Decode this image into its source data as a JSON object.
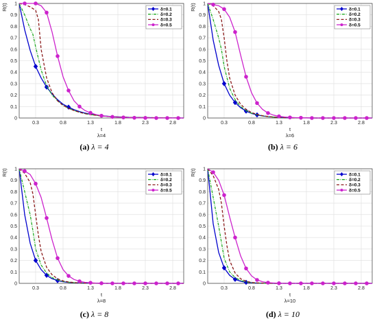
{
  "chart_data": [
    {
      "type": "line",
      "caption_tag": "(a)",
      "caption_expr": "λ = 4",
      "ylabel": "R(t)",
      "xlabel": "t",
      "xlabel_sub": "λ=4",
      "xlim": [
        0,
        3.0
      ],
      "ylim": [
        0,
        1
      ],
      "xticks": [
        0.3,
        0.8,
        1.3,
        1.8,
        2.3,
        2.8
      ],
      "yticks": [
        0,
        0.1,
        0.2,
        0.3,
        0.4,
        0.5,
        0.6,
        0.7,
        0.8,
        0.9,
        1
      ],
      "grid": true,
      "legend_position": "top-right",
      "series": [
        {
          "name": "δ=0.1",
          "color": "#0000cc",
          "style": "solid",
          "marker": "diamond",
          "x": [
            0,
            0.1,
            0.2,
            0.3,
            0.4,
            0.5,
            0.6,
            0.7,
            0.8,
            0.9,
            1.0,
            1.1,
            1.2,
            1.3,
            1.5,
            1.7,
            2.0,
            2.5,
            3.0
          ],
          "y": [
            1.0,
            0.77,
            0.59,
            0.45,
            0.35,
            0.27,
            0.21,
            0.16,
            0.12,
            0.095,
            0.073,
            0.056,
            0.043,
            0.033,
            0.02,
            0.012,
            0.006,
            0.002,
            0.0
          ],
          "marker_x": [
            0.3,
            0.5,
            0.9
          ]
        },
        {
          "name": "δ=0.2",
          "color": "#22aa22",
          "style": "dashdot",
          "marker": "none",
          "x": [
            0,
            0.1,
            0.2,
            0.25,
            0.3,
            0.4,
            0.5,
            0.6,
            0.7,
            0.8,
            0.9,
            1.0,
            1.1,
            1.2,
            1.3,
            1.5,
            1.7,
            2.0,
            2.5,
            3.0
          ],
          "y": [
            1.0,
            0.9,
            0.78,
            0.73,
            0.62,
            0.42,
            0.28,
            0.2,
            0.15,
            0.11,
            0.085,
            0.065,
            0.05,
            0.038,
            0.03,
            0.018,
            0.011,
            0.005,
            0.002,
            0.0
          ]
        },
        {
          "name": "δ=0.3",
          "color": "#8b1a1a",
          "style": "dash",
          "marker": "none",
          "x": [
            0,
            0.1,
            0.2,
            0.3,
            0.35,
            0.4,
            0.5,
            0.6,
            0.7,
            0.8,
            0.9,
            1.0,
            1.1,
            1.2,
            1.3,
            1.5,
            1.7,
            2.0,
            2.5,
            3.0
          ],
          "y": [
            1.0,
            0.99,
            0.97,
            0.94,
            0.86,
            0.6,
            0.35,
            0.22,
            0.15,
            0.11,
            0.085,
            0.065,
            0.05,
            0.038,
            0.03,
            0.018,
            0.011,
            0.005,
            0.002,
            0.0
          ]
        },
        {
          "name": "δ=0.5",
          "color": "#cc22cc",
          "style": "solid",
          "marker": "circle",
          "x": [
            0,
            0.1,
            0.2,
            0.3,
            0.4,
            0.5,
            0.6,
            0.7,
            0.8,
            0.9,
            1.0,
            1.1,
            1.2,
            1.3,
            1.4,
            1.5,
            1.6,
            1.7,
            1.8,
            1.9,
            2.0,
            2.1,
            2.2,
            2.3,
            2.4,
            2.5,
            2.6,
            2.7,
            2.8,
            2.9,
            3.0
          ],
          "y": [
            1.0,
            1.0,
            1.0,
            1.0,
            0.98,
            0.92,
            0.75,
            0.54,
            0.36,
            0.24,
            0.15,
            0.1,
            0.065,
            0.045,
            0.03,
            0.02,
            0.014,
            0.01,
            0.007,
            0.005,
            0.003,
            0.002,
            0.001,
            0.001,
            0.0,
            0.0,
            0.0,
            0.0,
            0.0,
            0.0,
            0.0
          ],
          "marker_x": [
            0.1,
            0.3,
            0.5,
            0.7,
            0.9,
            1.1,
            1.3,
            1.5,
            1.7,
            1.9,
            2.1,
            2.3,
            2.5,
            2.7,
            2.9
          ]
        }
      ]
    },
    {
      "type": "line",
      "caption_tag": "(b)",
      "caption_expr": "λ = 6",
      "ylabel": "R(t)",
      "xlabel": "t",
      "xlabel_sub": "λ=6",
      "xlim": [
        0,
        3.0
      ],
      "ylim": [
        0,
        1
      ],
      "xticks": [
        0.3,
        0.8,
        1.3,
        1.8,
        2.3,
        2.8
      ],
      "yticks": [
        0,
        0.1,
        0.2,
        0.3,
        0.4,
        0.5,
        0.6,
        0.7,
        0.8,
        0.9,
        1
      ],
      "grid": true,
      "legend_position": "top-right",
      "series": [
        {
          "name": "δ=0.1",
          "color": "#0000cc",
          "style": "solid",
          "marker": "diamond",
          "x": [
            0,
            0.1,
            0.2,
            0.3,
            0.4,
            0.5,
            0.6,
            0.7,
            0.8,
            0.9,
            1.0,
            1.1,
            1.2,
            1.3,
            1.5,
            1.7,
            2.0,
            2.5,
            3.0
          ],
          "y": [
            1.0,
            0.68,
            0.46,
            0.3,
            0.2,
            0.135,
            0.09,
            0.06,
            0.04,
            0.027,
            0.018,
            0.012,
            0.008,
            0.005,
            0.002,
            0.001,
            0.0,
            0.0,
            0.0
          ],
          "marker_x": [
            0.3,
            0.5,
            0.7,
            0.9
          ]
        },
        {
          "name": "δ=0.2",
          "color": "#22aa22",
          "style": "dashdot",
          "marker": "none",
          "x": [
            0,
            0.1,
            0.2,
            0.25,
            0.3,
            0.4,
            0.5,
            0.6,
            0.7,
            0.8,
            0.9,
            1.0,
            1.1,
            1.2,
            1.3,
            1.5,
            2.0,
            2.5,
            3.0
          ],
          "y": [
            1.0,
            0.86,
            0.7,
            0.6,
            0.45,
            0.26,
            0.16,
            0.1,
            0.065,
            0.042,
            0.028,
            0.018,
            0.012,
            0.008,
            0.005,
            0.002,
            0.0,
            0.0,
            0.0
          ]
        },
        {
          "name": "δ=0.3",
          "color": "#8b1a1a",
          "style": "dash",
          "marker": "none",
          "x": [
            0,
            0.1,
            0.2,
            0.25,
            0.3,
            0.35,
            0.4,
            0.5,
            0.6,
            0.7,
            0.8,
            0.9,
            1.0,
            1.1,
            1.2,
            1.3,
            1.5,
            2.0,
            2.5,
            3.0
          ],
          "y": [
            1.0,
            0.98,
            0.93,
            0.86,
            0.7,
            0.5,
            0.35,
            0.2,
            0.12,
            0.075,
            0.048,
            0.031,
            0.02,
            0.013,
            0.008,
            0.005,
            0.002,
            0.0,
            0.0,
            0.0
          ]
        },
        {
          "name": "δ=0.5",
          "color": "#cc22cc",
          "style": "solid",
          "marker": "circle",
          "x": [
            0,
            0.1,
            0.2,
            0.3,
            0.4,
            0.5,
            0.6,
            0.7,
            0.8,
            0.9,
            1.0,
            1.1,
            1.2,
            1.3,
            1.4,
            1.5,
            1.6,
            1.7,
            1.8,
            1.9,
            2.0,
            2.1,
            2.2,
            2.3,
            2.4,
            2.5,
            2.6,
            2.7,
            2.8,
            2.9,
            3.0
          ],
          "y": [
            1.0,
            0.99,
            0.98,
            0.95,
            0.88,
            0.75,
            0.55,
            0.36,
            0.22,
            0.13,
            0.075,
            0.043,
            0.025,
            0.015,
            0.009,
            0.005,
            0.003,
            0.002,
            0.001,
            0.0,
            0.0,
            0.0,
            0.0,
            0.0,
            0.0,
            0.0,
            0.0,
            0.0,
            0.0,
            0.0,
            0.0
          ],
          "marker_x": [
            0.1,
            0.3,
            0.5,
            0.7,
            0.9,
            1.1,
            1.3,
            1.5,
            1.7,
            1.9,
            2.1,
            2.3,
            2.5,
            2.7,
            2.9
          ]
        }
      ]
    },
    {
      "type": "line",
      "caption_tag": "(c)",
      "caption_expr": "λ = 8",
      "ylabel": "R(t)",
      "xlabel": "t",
      "xlabel_sub": "λ=8",
      "xlim": [
        0,
        3.0
      ],
      "ylim": [
        0,
        1
      ],
      "xticks": [
        0.3,
        0.8,
        1.3,
        1.8,
        2.3,
        2.8
      ],
      "yticks": [
        0,
        0.1,
        0.2,
        0.3,
        0.4,
        0.5,
        0.6,
        0.7,
        0.8,
        0.9,
        1
      ],
      "grid": true,
      "legend_position": "top-right",
      "series": [
        {
          "name": "δ=0.1",
          "color": "#0000cc",
          "style": "solid",
          "marker": "diamond",
          "x": [
            0,
            0.1,
            0.2,
            0.3,
            0.4,
            0.5,
            0.6,
            0.7,
            0.8,
            0.9,
            1.0,
            1.2,
            1.5,
            2.0,
            2.5,
            3.0
          ],
          "y": [
            1.0,
            0.6,
            0.35,
            0.2,
            0.12,
            0.07,
            0.04,
            0.024,
            0.014,
            0.008,
            0.005,
            0.002,
            0.0,
            0.0,
            0.0,
            0.0
          ],
          "marker_x": [
            0.3,
            0.5,
            0.7
          ]
        },
        {
          "name": "δ=0.2",
          "color": "#22aa22",
          "style": "dashdot",
          "marker": "none",
          "x": [
            0,
            0.1,
            0.2,
            0.25,
            0.3,
            0.4,
            0.5,
            0.6,
            0.7,
            0.8,
            0.9,
            1.0,
            1.2,
            1.5,
            2.0,
            2.5,
            3.0
          ],
          "y": [
            1.0,
            0.8,
            0.6,
            0.46,
            0.3,
            0.16,
            0.09,
            0.05,
            0.03,
            0.017,
            0.01,
            0.006,
            0.002,
            0.0,
            0.0,
            0.0,
            0.0
          ]
        },
        {
          "name": "δ=0.3",
          "color": "#8b1a1a",
          "style": "dash",
          "marker": "none",
          "x": [
            0,
            0.1,
            0.2,
            0.25,
            0.3,
            0.35,
            0.4,
            0.5,
            0.6,
            0.7,
            0.8,
            0.9,
            1.0,
            1.2,
            1.5,
            2.0,
            2.5,
            3.0
          ],
          "y": [
            1.0,
            0.96,
            0.88,
            0.78,
            0.6,
            0.42,
            0.28,
            0.14,
            0.075,
            0.04,
            0.022,
            0.012,
            0.007,
            0.002,
            0.0,
            0.0,
            0.0,
            0.0
          ]
        },
        {
          "name": "δ=0.5",
          "color": "#cc22cc",
          "style": "solid",
          "marker": "circle",
          "x": [
            0,
            0.1,
            0.2,
            0.3,
            0.4,
            0.5,
            0.6,
            0.7,
            0.8,
            0.9,
            1.0,
            1.1,
            1.2,
            1.3,
            1.4,
            1.5,
            1.6,
            1.7,
            1.8,
            1.9,
            2.0,
            2.1,
            2.2,
            2.3,
            2.4,
            2.5,
            2.6,
            2.7,
            2.8,
            2.9,
            3.0
          ],
          "y": [
            1.0,
            0.98,
            0.95,
            0.87,
            0.75,
            0.57,
            0.38,
            0.22,
            0.12,
            0.065,
            0.034,
            0.018,
            0.009,
            0.005,
            0.002,
            0.001,
            0.0,
            0.0,
            0.0,
            0.0,
            0.0,
            0.0,
            0.0,
            0.0,
            0.0,
            0.0,
            0.0,
            0.0,
            0.0,
            0.0,
            0.0
          ],
          "marker_x": [
            0.1,
            0.3,
            0.5,
            0.7,
            0.9,
            1.1,
            1.3,
            1.5,
            1.7,
            1.9,
            2.1,
            2.3,
            2.5,
            2.7,
            2.9
          ]
        }
      ]
    },
    {
      "type": "line",
      "caption_tag": "(d)",
      "caption_expr": "λ = 10",
      "ylabel": "R(t)",
      "xlabel": "t",
      "xlabel_sub": "λ=10",
      "xlim": [
        0,
        3.0
      ],
      "ylim": [
        0,
        1
      ],
      "xticks": [
        0.3,
        0.8,
        1.3,
        1.8,
        2.3,
        2.8
      ],
      "yticks": [
        0,
        0.1,
        0.2,
        0.3,
        0.4,
        0.5,
        0.6,
        0.7,
        0.8,
        0.9,
        1
      ],
      "grid": true,
      "legend_position": "top-right",
      "series": [
        {
          "name": "δ=0.1",
          "color": "#0000cc",
          "style": "solid",
          "marker": "diamond",
          "x": [
            0,
            0.1,
            0.2,
            0.3,
            0.4,
            0.5,
            0.6,
            0.7,
            0.8,
            0.9,
            1.0,
            1.2,
            1.5,
            2.0,
            2.5,
            3.0
          ],
          "y": [
            1.0,
            0.52,
            0.27,
            0.135,
            0.07,
            0.035,
            0.018,
            0.009,
            0.005,
            0.002,
            0.001,
            0.0,
            0.0,
            0.0,
            0.0,
            0.0
          ],
          "marker_x": [
            0.3,
            0.5,
            0.7
          ]
        },
        {
          "name": "δ=0.2",
          "color": "#22aa22",
          "style": "dashdot",
          "marker": "none",
          "x": [
            0,
            0.1,
            0.2,
            0.25,
            0.3,
            0.4,
            0.5,
            0.6,
            0.7,
            0.8,
            0.9,
            1.0,
            1.2,
            1.5,
            2.0,
            2.5,
            3.0
          ],
          "y": [
            1.0,
            0.75,
            0.5,
            0.36,
            0.22,
            0.1,
            0.05,
            0.025,
            0.012,
            0.006,
            0.003,
            0.001,
            0.0,
            0.0,
            0.0,
            0.0,
            0.0
          ]
        },
        {
          "name": "δ=0.3",
          "color": "#8b1a1a",
          "style": "dash",
          "marker": "none",
          "x": [
            0,
            0.1,
            0.2,
            0.25,
            0.3,
            0.35,
            0.4,
            0.5,
            0.6,
            0.7,
            0.8,
            0.9,
            1.0,
            1.2,
            1.5,
            2.0,
            2.5,
            3.0
          ],
          "y": [
            1.0,
            0.94,
            0.82,
            0.7,
            0.5,
            0.33,
            0.2,
            0.09,
            0.04,
            0.018,
            0.008,
            0.004,
            0.002,
            0.0,
            0.0,
            0.0,
            0.0,
            0.0
          ]
        },
        {
          "name": "δ=0.5",
          "color": "#cc22cc",
          "style": "solid",
          "marker": "circle",
          "x": [
            0,
            0.1,
            0.2,
            0.3,
            0.4,
            0.5,
            0.6,
            0.7,
            0.8,
            0.9,
            1.0,
            1.1,
            1.2,
            1.3,
            1.4,
            1.5,
            1.6,
            1.7,
            1.8,
            1.9,
            2.0,
            2.1,
            2.2,
            2.3,
            2.4,
            2.5,
            2.6,
            2.7,
            2.8,
            2.9,
            3.0
          ],
          "y": [
            1.0,
            0.97,
            0.9,
            0.77,
            0.58,
            0.4,
            0.24,
            0.13,
            0.065,
            0.03,
            0.014,
            0.006,
            0.003,
            0.001,
            0.0,
            0.0,
            0.0,
            0.0,
            0.0,
            0.0,
            0.0,
            0.0,
            0.0,
            0.0,
            0.0,
            0.0,
            0.0,
            0.0,
            0.0,
            0.0,
            0.0
          ],
          "marker_x": [
            0.1,
            0.3,
            0.5,
            0.7,
            0.9,
            1.1,
            1.3,
            1.5,
            1.7,
            1.9,
            2.1,
            2.3,
            2.5,
            2.7,
            2.9
          ]
        }
      ]
    }
  ]
}
